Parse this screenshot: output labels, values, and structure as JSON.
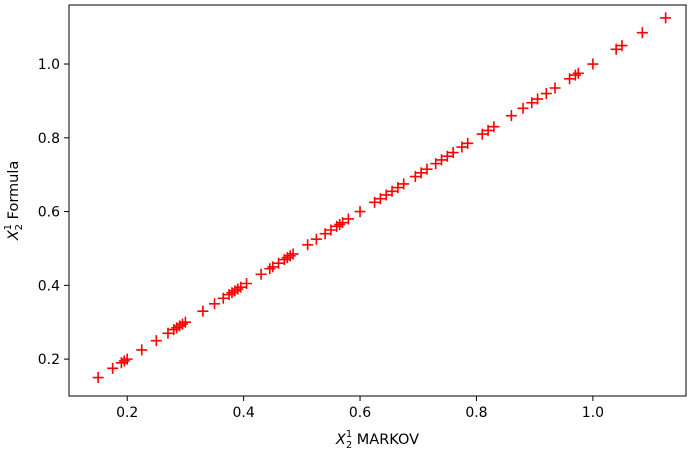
{
  "chart_data": {
    "type": "scatter",
    "marker": "+",
    "color": "#ff0000",
    "title": "",
    "xlabel": {
      "base": "X",
      "sub": "2",
      "sup": "1",
      "rest": " MARKOV"
    },
    "ylabel": {
      "base": "X",
      "sub": "2",
      "sup": "1",
      "rest": " Formula"
    },
    "xlim": [
      0.1,
      1.16
    ],
    "ylim": [
      0.1,
      1.16
    ],
    "xticks": [
      0.2,
      0.4,
      0.6,
      0.8,
      1.0
    ],
    "xtick_labels": [
      "0.2",
      "0.4",
      "0.6",
      "0.8",
      "1.0"
    ],
    "yticks": [
      0.2,
      0.4,
      0.6,
      0.8,
      1.0
    ],
    "ytick_labels": [
      "0.2",
      "0.4",
      "0.6",
      "0.8",
      "1.0"
    ],
    "grid": false,
    "legend": "none",
    "series": [
      {
        "x": [
          0.15,
          0.175,
          0.19,
          0.195,
          0.2,
          0.225,
          0.25,
          0.27,
          0.28,
          0.285,
          0.29,
          0.295,
          0.3,
          0.33,
          0.35,
          0.365,
          0.375,
          0.38,
          0.385,
          0.39,
          0.395,
          0.405,
          0.43,
          0.445,
          0.45,
          0.46,
          0.47,
          0.475,
          0.48,
          0.485,
          0.51,
          0.525,
          0.54,
          0.55,
          0.56,
          0.565,
          0.57,
          0.58,
          0.6,
          0.625,
          0.635,
          0.645,
          0.655,
          0.665,
          0.675,
          0.695,
          0.705,
          0.715,
          0.73,
          0.74,
          0.75,
          0.76,
          0.775,
          0.785,
          0.81,
          0.82,
          0.83,
          0.86,
          0.88,
          0.895,
          0.905,
          0.92,
          0.935,
          0.96,
          0.97,
          0.975,
          1.0,
          1.04,
          1.05,
          1.085,
          1.125
        ],
        "y": [
          0.15,
          0.175,
          0.19,
          0.195,
          0.2,
          0.225,
          0.25,
          0.27,
          0.28,
          0.285,
          0.29,
          0.295,
          0.3,
          0.33,
          0.35,
          0.365,
          0.375,
          0.38,
          0.385,
          0.39,
          0.395,
          0.405,
          0.43,
          0.445,
          0.45,
          0.46,
          0.47,
          0.475,
          0.48,
          0.485,
          0.51,
          0.525,
          0.54,
          0.55,
          0.56,
          0.565,
          0.57,
          0.58,
          0.6,
          0.625,
          0.635,
          0.645,
          0.655,
          0.665,
          0.675,
          0.695,
          0.705,
          0.715,
          0.73,
          0.74,
          0.75,
          0.76,
          0.775,
          0.785,
          0.81,
          0.82,
          0.83,
          0.86,
          0.88,
          0.895,
          0.905,
          0.92,
          0.935,
          0.96,
          0.97,
          0.975,
          1.0,
          1.04,
          1.05,
          1.085,
          1.125
        ]
      }
    ]
  }
}
